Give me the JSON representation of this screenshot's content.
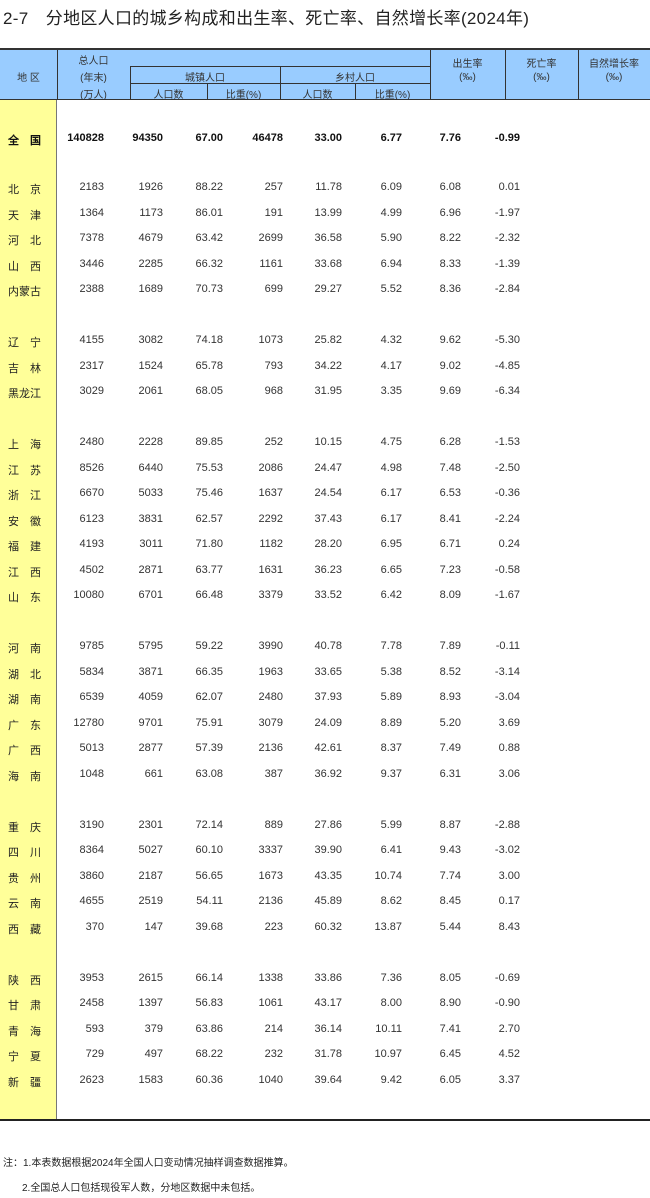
{
  "title": "2-7　分地区人口的城乡构成和出生率、死亡率、自然增长率(2024年)",
  "header": {
    "region": "地 区",
    "total_line1": "总人口",
    "total_line2": "(年末)",
    "total_line3": "(万人)",
    "urban": "城镇人口",
    "rural": "乡村人口",
    "count": "人口数",
    "share": "比重(%)",
    "birth": "出生率",
    "death": "死亡率",
    "natural": "自然增长率",
    "permille": "(‰)"
  },
  "colors": {
    "header_bg": "#99ccff",
    "region_col_bg": "#ffff99"
  },
  "national": [
    "全　国",
    "140828",
    "94350",
    "67.00",
    "46478",
    "33.00",
    "6.77",
    "7.76",
    "-0.99"
  ],
  "groups": [
    [
      [
        "北　京",
        "2183",
        "1926",
        "88.22",
        "257",
        "11.78",
        "6.09",
        "6.08",
        "0.01"
      ],
      [
        "天　津",
        "1364",
        "1173",
        "86.01",
        "191",
        "13.99",
        "4.99",
        "6.96",
        "-1.97"
      ],
      [
        "河　北",
        "7378",
        "4679",
        "63.42",
        "2699",
        "36.58",
        "5.90",
        "8.22",
        "-2.32"
      ],
      [
        "山　西",
        "3446",
        "2285",
        "66.32",
        "1161",
        "33.68",
        "6.94",
        "8.33",
        "-1.39"
      ],
      [
        "内蒙古",
        "2388",
        "1689",
        "70.73",
        "699",
        "29.27",
        "5.52",
        "8.36",
        "-2.84"
      ]
    ],
    [
      [
        "辽　宁",
        "4155",
        "3082",
        "74.18",
        "1073",
        "25.82",
        "4.32",
        "9.62",
        "-5.30"
      ],
      [
        "吉　林",
        "2317",
        "1524",
        "65.78",
        "793",
        "34.22",
        "4.17",
        "9.02",
        "-4.85"
      ],
      [
        "黑龙江",
        "3029",
        "2061",
        "68.05",
        "968",
        "31.95",
        "3.35",
        "9.69",
        "-6.34"
      ]
    ],
    [
      [
        "上　海",
        "2480",
        "2228",
        "89.85",
        "252",
        "10.15",
        "4.75",
        "6.28",
        "-1.53"
      ],
      [
        "江　苏",
        "8526",
        "6440",
        "75.53",
        "2086",
        "24.47",
        "4.98",
        "7.48",
        "-2.50"
      ],
      [
        "浙　江",
        "6670",
        "5033",
        "75.46",
        "1637",
        "24.54",
        "6.17",
        "6.53",
        "-0.36"
      ],
      [
        "安　徽",
        "6123",
        "3831",
        "62.57",
        "2292",
        "37.43",
        "6.17",
        "8.41",
        "-2.24"
      ],
      [
        "福　建",
        "4193",
        "3011",
        "71.80",
        "1182",
        "28.20",
        "6.95",
        "6.71",
        "0.24"
      ],
      [
        "江　西",
        "4502",
        "2871",
        "63.77",
        "1631",
        "36.23",
        "6.65",
        "7.23",
        "-0.58"
      ],
      [
        "山　东",
        "10080",
        "6701",
        "66.48",
        "3379",
        "33.52",
        "6.42",
        "8.09",
        "-1.67"
      ]
    ],
    [
      [
        "河　南",
        "9785",
        "5795",
        "59.22",
        "3990",
        "40.78",
        "7.78",
        "7.89",
        "-0.11"
      ],
      [
        "湖　北",
        "5834",
        "3871",
        "66.35",
        "1963",
        "33.65",
        "5.38",
        "8.52",
        "-3.14"
      ],
      [
        "湖　南",
        "6539",
        "4059",
        "62.07",
        "2480",
        "37.93",
        "5.89",
        "8.93",
        "-3.04"
      ],
      [
        "广　东",
        "12780",
        "9701",
        "75.91",
        "3079",
        "24.09",
        "8.89",
        "5.20",
        "3.69"
      ],
      [
        "广　西",
        "5013",
        "2877",
        "57.39",
        "2136",
        "42.61",
        "8.37",
        "7.49",
        "0.88"
      ],
      [
        "海　南",
        "1048",
        "661",
        "63.08",
        "387",
        "36.92",
        "9.37",
        "6.31",
        "3.06"
      ]
    ],
    [
      [
        "重　庆",
        "3190",
        "2301",
        "72.14",
        "889",
        "27.86",
        "5.99",
        "8.87",
        "-2.88"
      ],
      [
        "四　川",
        "8364",
        "5027",
        "60.10",
        "3337",
        "39.90",
        "6.41",
        "9.43",
        "-3.02"
      ],
      [
        "贵　州",
        "3860",
        "2187",
        "56.65",
        "1673",
        "43.35",
        "10.74",
        "7.74",
        "3.00"
      ],
      [
        "云　南",
        "4655",
        "2519",
        "54.11",
        "2136",
        "45.89",
        "8.62",
        "8.45",
        "0.17"
      ],
      [
        "西　藏",
        "370",
        "147",
        "39.68",
        "223",
        "60.32",
        "13.87",
        "5.44",
        "8.43"
      ]
    ],
    [
      [
        "陕　西",
        "3953",
        "2615",
        "66.14",
        "1338",
        "33.86",
        "7.36",
        "8.05",
        "-0.69"
      ],
      [
        "甘　肃",
        "2458",
        "1397",
        "56.83",
        "1061",
        "43.17",
        "8.00",
        "8.90",
        "-0.90"
      ],
      [
        "青　海",
        "593",
        "379",
        "63.86",
        "214",
        "36.14",
        "10.11",
        "7.41",
        "2.70"
      ],
      [
        "宁　夏",
        "729",
        "497",
        "68.22",
        "232",
        "31.78",
        "10.97",
        "6.45",
        "4.52"
      ],
      [
        "新　疆",
        "2623",
        "1583",
        "60.36",
        "1040",
        "39.64",
        "9.42",
        "6.05",
        "3.37"
      ]
    ]
  ],
  "notes": [
    "注：1.本表数据根据2024年全国人口变动情况抽样调查数据推算。",
    "2.全国总人口包括现役军人数，分地区数据中未包括。"
  ]
}
